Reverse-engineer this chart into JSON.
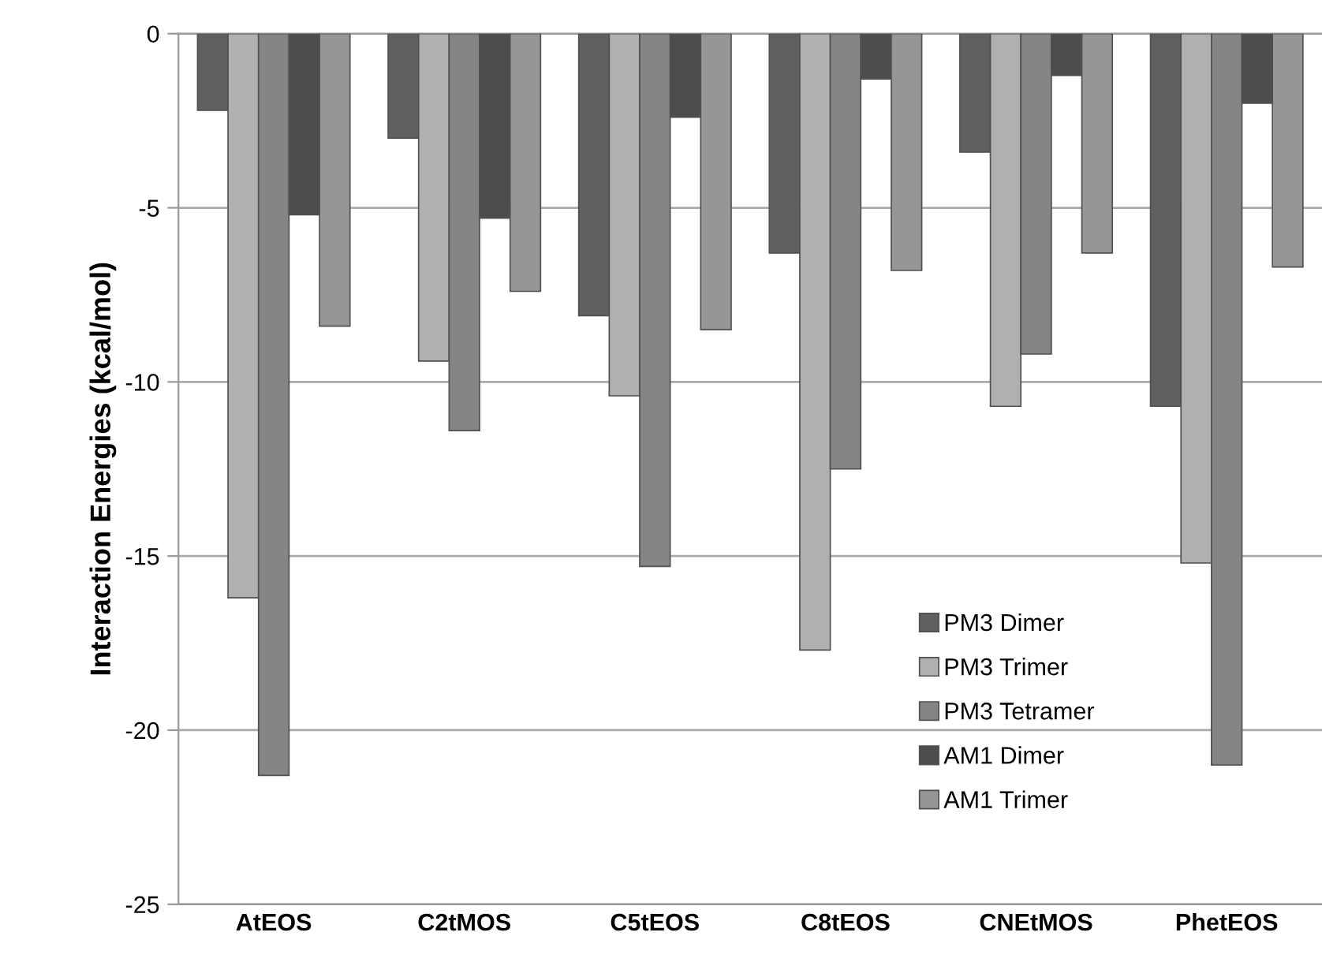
{
  "chart_data": {
    "type": "bar",
    "ylabel": "Interaction Energies (kcal/mol)",
    "categories": [
      "AtEOS",
      "C2tMOS",
      "C5tEOS",
      "C8tEOS",
      "CNEtMOS",
      "PhetEOS"
    ],
    "series": [
      {
        "name": "PM3 Dimer",
        "color": "#606060",
        "values": [
          -2.2,
          -3.0,
          -8.1,
          -6.3,
          -3.4,
          -10.7
        ]
      },
      {
        "name": "PM3 Trimer",
        "color": "#b0b0b0",
        "values": [
          -16.2,
          -9.4,
          -10.4,
          -17.7,
          -10.7,
          -15.2
        ]
      },
      {
        "name": "PM3 Tetramer",
        "color": "#858585",
        "values": [
          -21.3,
          -11.4,
          -15.3,
          -12.5,
          -9.2,
          -21.0
        ]
      },
      {
        "name": "AM1 Dimer",
        "color": "#4d4d4d",
        "values": [
          -5.2,
          -5.3,
          -2.4,
          -1.3,
          -1.2,
          -2.0
        ]
      },
      {
        "name": "AM1 Trimer",
        "color": "#969696",
        "values": [
          -8.4,
          -7.4,
          -8.5,
          -6.8,
          -6.3,
          -6.7
        ]
      }
    ],
    "ylim": [
      -25,
      0
    ],
    "yticks": [
      -25,
      -20,
      -15,
      -10,
      -5,
      0
    ],
    "grid": "y",
    "legend": "bottom right"
  }
}
